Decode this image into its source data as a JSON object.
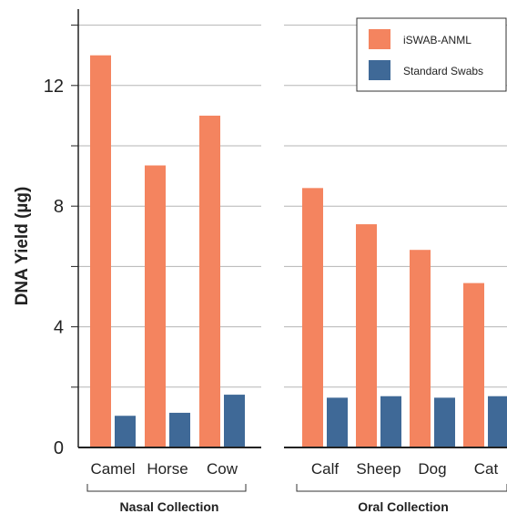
{
  "chart_data": {
    "type": "bar",
    "ylabel": "DNA Yield (µg)",
    "ylim": [
      0,
      14.5
    ],
    "yticks": [
      "0",
      "4",
      "8",
      "12"
    ],
    "grid": true,
    "legend_position": "top-right",
    "colors": {
      "iSWAB-ANML": "#f4845f",
      "Standard Swabs": "#3f6997"
    },
    "groups": [
      {
        "label": "Nasal Collection",
        "categories": [
          "Camel",
          "Horse",
          "Cow"
        ],
        "series": [
          {
            "name": "iSWAB-ANML",
            "values": [
              13.0,
              9.35,
              11.0
            ]
          },
          {
            "name": "Standard Swabs",
            "values": [
              1.05,
              1.15,
              1.75
            ]
          }
        ]
      },
      {
        "label": "Oral Collection",
        "categories": [
          "Calf",
          "Sheep",
          "Dog",
          "Cat"
        ],
        "series": [
          {
            "name": "iSWAB-ANML",
            "values": [
              8.6,
              7.4,
              6.55,
              5.45
            ]
          },
          {
            "name": "Standard Swabs",
            "values": [
              1.65,
              1.7,
              1.65,
              1.7
            ]
          }
        ]
      }
    ],
    "legend": [
      "iSWAB-ANML",
      "Standard Swabs"
    ]
  }
}
